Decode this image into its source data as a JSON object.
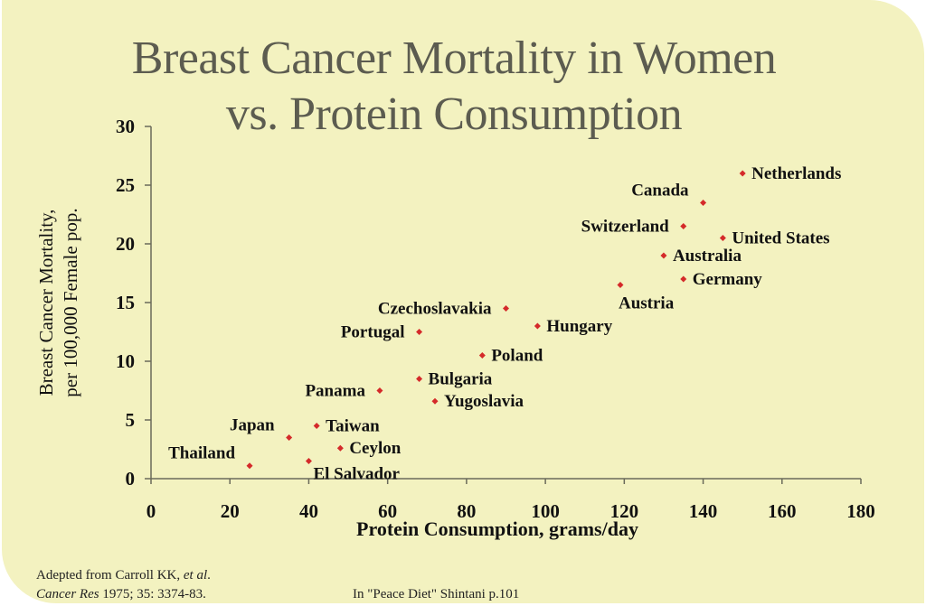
{
  "slide": {
    "title_line1": "Breast Cancer Mortality in Women",
    "title_line2": "vs. Protein Consumption",
    "footnote_left_line1_prefix": "Adepted from Carroll KK, ",
    "footnote_left_line1_italic": "et al",
    "footnote_left_line1_suffix": ".",
    "footnote_left_line2_italic": "Cancer Res",
    "footnote_left_line2_suffix": " 1975; 35: 3374-83.",
    "footnote_right": "In \"Peace Diet\" Shintani p.101"
  },
  "colors": {
    "background": "#f3f2c0",
    "point": "#d42a2a",
    "axis": "#6a6a5a",
    "title": "#5c5c50"
  },
  "chart_data": {
    "type": "scatter",
    "title": "Breast Cancer Mortality in Women vs. Protein Consumption",
    "xlabel": "Protein Consumption, grams/day",
    "ylabel_line1": "Breast Cancer Mortality,",
    "ylabel_line2": "per 100,000 Female pop.",
    "xlim": [
      0,
      180
    ],
    "ylim": [
      0,
      30
    ],
    "xticks": [
      0,
      20,
      40,
      60,
      80,
      100,
      120,
      140,
      160,
      180
    ],
    "yticks": [
      0,
      5,
      10,
      15,
      20,
      25,
      30
    ],
    "grid": false,
    "legend": "none",
    "points": [
      {
        "label": "Netherlands",
        "x": 150,
        "y": 26,
        "label_side": "right"
      },
      {
        "label": "Canada",
        "x": 140,
        "y": 23.5,
        "label_side": "left-above"
      },
      {
        "label": "Switzerland",
        "x": 135,
        "y": 21.5,
        "label_side": "left"
      },
      {
        "label": "United States",
        "x": 145,
        "y": 20.5,
        "label_side": "right"
      },
      {
        "label": "Australia",
        "x": 130,
        "y": 19,
        "label_side": "right"
      },
      {
        "label": "Germany",
        "x": 135,
        "y": 17,
        "label_side": "right"
      },
      {
        "label": "Austria",
        "x": 119,
        "y": 16.5,
        "label_side": "below"
      },
      {
        "label": "Czechoslavakia",
        "x": 90,
        "y": 14.5,
        "label_side": "left"
      },
      {
        "label": "Hungary",
        "x": 98,
        "y": 13,
        "label_side": "right"
      },
      {
        "label": "Portugal",
        "x": 68,
        "y": 12.5,
        "label_side": "left"
      },
      {
        "label": "Poland",
        "x": 84,
        "y": 10.5,
        "label_side": "right"
      },
      {
        "label": "Bulgaria",
        "x": 68,
        "y": 8.5,
        "label_side": "right"
      },
      {
        "label": "Panama",
        "x": 58,
        "y": 7.5,
        "label_side": "left"
      },
      {
        "label": "Yugoslavia",
        "x": 72,
        "y": 6.6,
        "label_side": "right"
      },
      {
        "label": "Taiwan",
        "x": 42,
        "y": 4.5,
        "label_side": "right"
      },
      {
        "label": "Japan",
        "x": 35,
        "y": 3.5,
        "label_side": "left-above"
      },
      {
        "label": "Ceylon",
        "x": 48,
        "y": 2.6,
        "label_side": "right"
      },
      {
        "label": "El Salvador",
        "x": 40,
        "y": 1.5,
        "label_side": "right-below"
      },
      {
        "label": "Thailand",
        "x": 25,
        "y": 1.1,
        "label_side": "left-above"
      }
    ]
  }
}
